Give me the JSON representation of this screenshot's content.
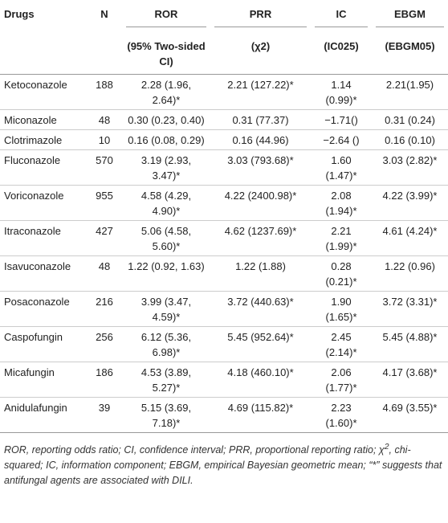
{
  "table": {
    "header": [
      "Drugs",
      "N",
      "ROR",
      "PRR",
      "IC",
      "EBGM"
    ],
    "subheader": [
      "(95% Two-sided CI)",
      "(χ2)",
      "(IC025)",
      "(EBGM05)"
    ],
    "rows": [
      [
        "Ketoconazole",
        "188",
        "2.28 (1.96, 2.64)*",
        "2.21 (127.22)*",
        "1.14 (0.99)*",
        "2.21(1.95)"
      ],
      [
        "Miconazole",
        "48",
        "0.30 (0.23, 0.40)",
        "0.31 (77.37)",
        "−1.71()",
        "0.31 (0.24)"
      ],
      [
        "Clotrimazole",
        "10",
        "0.16 (0.08, 0.29)",
        "0.16 (44.96)",
        "−2.64 ()",
        "0.16 (0.10)"
      ],
      [
        "Fluconazole",
        "570",
        "3.19 (2.93, 3.47)*",
        "3.03 (793.68)*",
        "1.60 (1.47)*",
        "3.03 (2.82)*"
      ],
      [
        "Voriconazole",
        "955",
        "4.58 (4.29, 4.90)*",
        "4.22 (2400.98)*",
        "2.08 (1.94)*",
        "4.22 (3.99)*"
      ],
      [
        "Itraconazole",
        "427",
        "5.06 (4.58, 5.60)*",
        "4.62 (1237.69)*",
        "2.21 (1.99)*",
        "4.61 (4.24)*"
      ],
      [
        "Isavuconazole",
        "48",
        "1.22 (0.92, 1.63)",
        "1.22 (1.88)",
        "0.28 (0.21)*",
        "1.22 (0.96)"
      ],
      [
        "Posaconazole",
        "216",
        "3.99 (3.47, 4.59)*",
        "3.72 (440.63)*",
        "1.90 (1.65)*",
        "3.72 (3.31)*"
      ],
      [
        "Caspofungin",
        "256",
        "6.12 (5.36, 6.98)*",
        "5.45 (952.64)*",
        "2.45 (2.14)*",
        "5.45 (4.88)*"
      ],
      [
        "Micafungin",
        "186",
        "4.53 (3.89, 5.27)*",
        "4.18 (460.10)*",
        "2.06 (1.77)*",
        "4.17 (3.68)*"
      ],
      [
        "Anidulafungin",
        "39",
        "5.15 (3.69, 7.18)*",
        "4.69 (115.82)*",
        "2.23 (1.60)*",
        "4.69 (3.55)*"
      ]
    ]
  },
  "footnote": [
    "ROR, reporting odds ratio; CI, confidence interval; PRR, proportional reporting ratio; χ",
    "2",
    ", chi-squared; IC, information component; EBGM, empirical Bayesian geometric mean; “*” suggests that antifungal agents are associated with DILI."
  ]
}
